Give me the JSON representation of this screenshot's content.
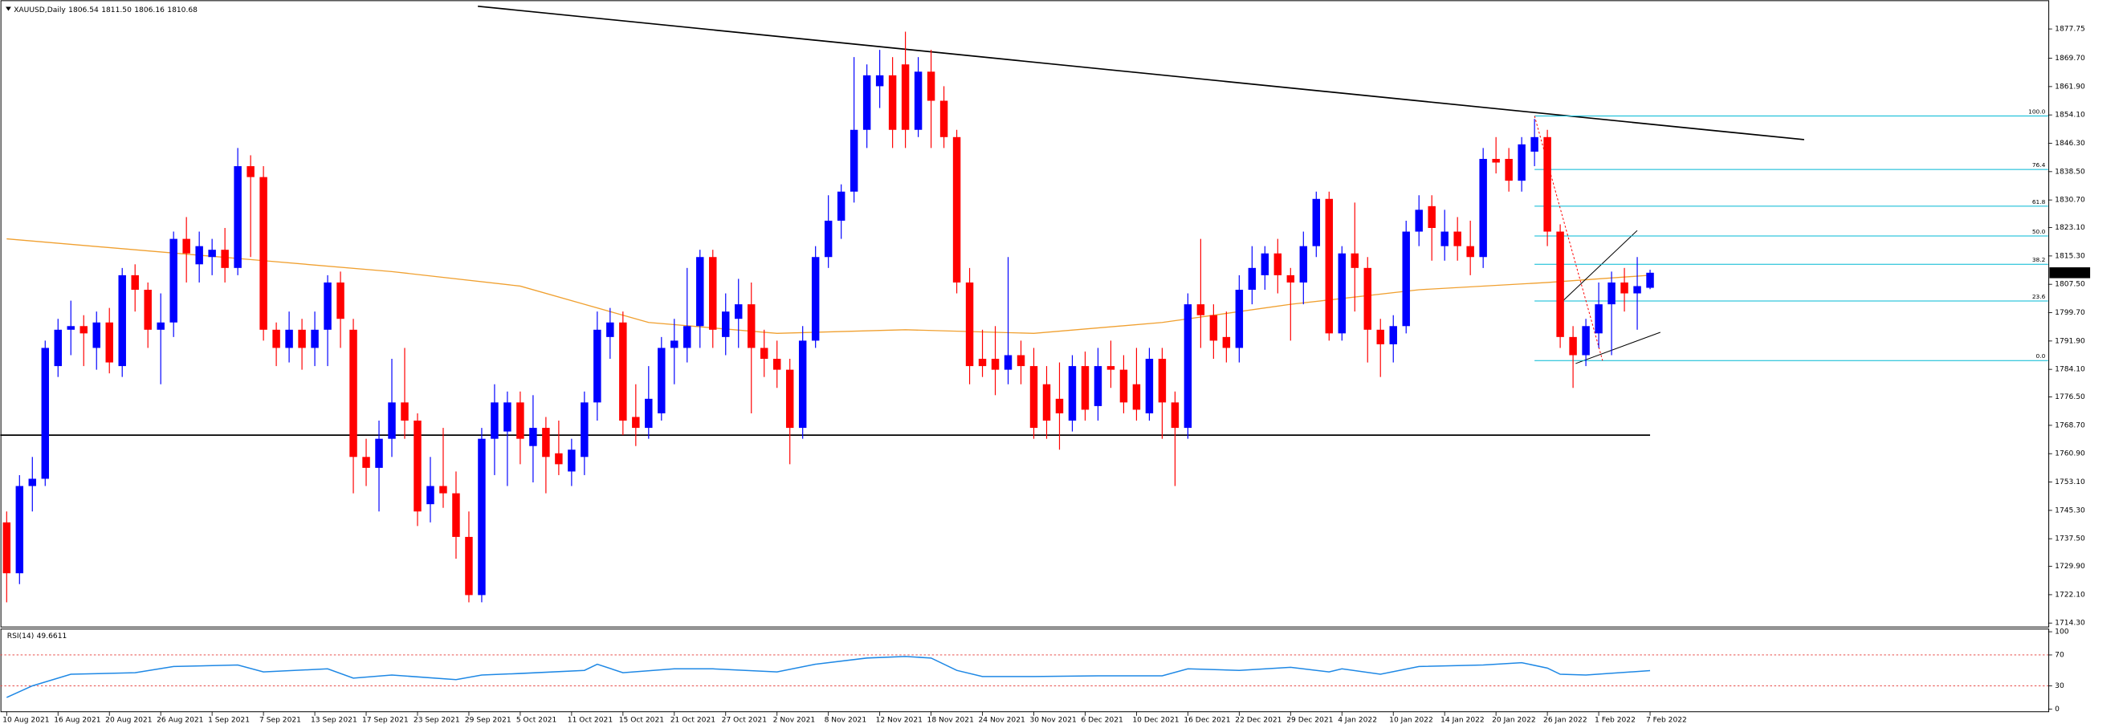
{
  "chart_data": {
    "type": "candlestick",
    "title": "XAUUSD,Daily",
    "ohlc_labels": [
      "1806.54",
      "1811.50",
      "1806.16",
      "1810.68"
    ],
    "categories": [
      "10 Aug 2021",
      null,
      null,
      null,
      "16 Aug 2021",
      null,
      null,
      null,
      "20 Aug 2021",
      null,
      null,
      null,
      "26 Aug 2021",
      null,
      null,
      null,
      "1 Sep 2021",
      null,
      null,
      null,
      "7 Sep 2021",
      null,
      null,
      null,
      "13 Sep 2021",
      null,
      null,
      null,
      "17 Sep 2021",
      null,
      null,
      null,
      "23 Sep 2021",
      null,
      null,
      null,
      "29 Sep 2021",
      null,
      null,
      null,
      "5 Oct 2021",
      null,
      null,
      null,
      "11 Oct 2021",
      null,
      null,
      null,
      "15 Oct 2021",
      null,
      null,
      null,
      "21 Oct 2021",
      null,
      null,
      null,
      "27 Oct 2021",
      null,
      null,
      null,
      "2 Nov 2021",
      null,
      null,
      null,
      "8 Nov 2021",
      null,
      null,
      null,
      "12 Nov 2021",
      null,
      null,
      null,
      "18 Nov 2021",
      null,
      null,
      null,
      "24 Nov 2021",
      null,
      null,
      null,
      "30 Nov 2021",
      null,
      null,
      null,
      "6 Dec 2021",
      null,
      null,
      null,
      "10 Dec 2021",
      null,
      null,
      null,
      "16 Dec 2021",
      null,
      null,
      null,
      "22 Dec 2021",
      null,
      null,
      null,
      "29 Dec 2021",
      null,
      null,
      null,
      "4 Jan 2022",
      null,
      null,
      null,
      "10 Jan 2022",
      null,
      null,
      null,
      "14 Jan 2022",
      null,
      null,
      null,
      "20 Jan 2022",
      null,
      null,
      null,
      "26 Jan 2022",
      null,
      null,
      null,
      "1 Feb 2022",
      null,
      null,
      null,
      "7 Feb 2022"
    ],
    "candles": {
      "open": [
        1742,
        1728,
        1752,
        1754,
        1785,
        1795,
        1796,
        1790,
        1797,
        1785,
        1810,
        1806,
        1795,
        1797,
        1820,
        1813,
        1815,
        1817,
        1812,
        1840,
        1837,
        1795,
        1790,
        1795,
        1790,
        1795,
        1808,
        1795,
        1760,
        1757,
        1765,
        1775,
        1770,
        1747,
        1752,
        1750,
        1738,
        1722,
        1765,
        1767,
        1775,
        1763,
        1768,
        1761,
        1756,
        1760,
        1775,
        1793,
        1797,
        1771,
        1768,
        1772,
        1790,
        1790,
        1796,
        1815,
        1793,
        1798,
        1802,
        1790,
        1787,
        1784,
        1768,
        1792,
        1815,
        1825,
        1833,
        1850,
        1862,
        1865,
        1868,
        1850,
        1866,
        1858,
        1848,
        1808,
        1787,
        1787,
        1784,
        1788,
        1785,
        1780,
        1776,
        1770,
        1785,
        1774,
        1785,
        1784,
        1780,
        1772,
        1787,
        1775,
        1768,
        1802,
        1799,
        1793,
        1790,
        1806,
        1810,
        1816,
        1810,
        1808,
        1818,
        1831,
        1794,
        1816,
        1812,
        1795,
        1791,
        1796,
        1822,
        1829,
        1818,
        1822,
        1818,
        1815,
        1842,
        1842,
        1836,
        1844,
        1848,
        1822,
        1793,
        1788,
        1794,
        1802,
        1808,
        1805,
        1806.54
      ],
      "high": [
        1745,
        1755,
        1760,
        1792,
        1798,
        1803,
        1799,
        1800,
        1801,
        1812,
        1813,
        1808,
        1805,
        1822,
        1826,
        1822,
        1820,
        1823,
        1845,
        1843,
        1840,
        1797,
        1800,
        1798,
        1800,
        1810,
        1811,
        1798,
        1765,
        1770,
        1787,
        1790,
        1772,
        1760,
        1768,
        1756,
        1745,
        1768,
        1780,
        1778,
        1778,
        1777,
        1771,
        1770,
        1765,
        1778,
        1800,
        1801,
        1800,
        1780,
        1785,
        1793,
        1798,
        1812,
        1817,
        1817,
        1805,
        1809,
        1808,
        1795,
        1792,
        1787,
        1796,
        1818,
        1832,
        1835,
        1870,
        1868,
        1872,
        1870,
        1877,
        1870,
        1872,
        1862,
        1850,
        1812,
        1795,
        1796,
        1815,
        1792,
        1790,
        1785,
        1786,
        1788,
        1789,
        1790,
        1792,
        1788,
        1790,
        1790,
        1790,
        1778,
        1805,
        1820,
        1802,
        1800,
        1810,
        1818,
        1818,
        1820,
        1812,
        1822,
        1833,
        1833,
        1818,
        1830,
        1815,
        1798,
        1799,
        1825,
        1832,
        1832,
        1828,
        1826,
        1825,
        1845,
        1848,
        1845,
        1848,
        1853,
        1850,
        1824,
        1796,
        1798,
        1808,
        1811,
        1812,
        1815,
        1811.5
      ],
      "low": [
        1720,
        1725,
        1745,
        1752,
        1782,
        1788,
        1785,
        1784,
        1783,
        1782,
        1800,
        1790,
        1780,
        1793,
        1808,
        1808,
        1810,
        1808,
        1810,
        1815,
        1792,
        1785,
        1786,
        1784,
        1785,
        1785,
        1790,
        1750,
        1752,
        1745,
        1760,
        1765,
        1741,
        1742,
        1746,
        1732,
        1720,
        1720,
        1755,
        1752,
        1758,
        1753,
        1750,
        1755,
        1752,
        1755,
        1770,
        1787,
        1766,
        1763,
        1765,
        1770,
        1780,
        1786,
        1790,
        1790,
        1788,
        1790,
        1772,
        1782,
        1779,
        1758,
        1765,
        1790,
        1812,
        1820,
        1830,
        1845,
        1856,
        1845,
        1845,
        1848,
        1845,
        1845,
        1805,
        1780,
        1782,
        1777,
        1780,
        1780,
        1765,
        1765,
        1762,
        1767,
        1770,
        1770,
        1779,
        1772,
        1770,
        1770,
        1765,
        1752,
        1765,
        1790,
        1787,
        1786,
        1786,
        1802,
        1806,
        1805,
        1792,
        1802,
        1815,
        1792,
        1792,
        1800,
        1786,
        1782,
        1786,
        1794,
        1818,
        1814,
        1814,
        1814,
        1810,
        1812,
        1838,
        1833,
        1833,
        1840,
        1818,
        1790,
        1779,
        1785,
        1790,
        1788,
        1800,
        1795,
        1806.16
      ],
      "close": [
        1728,
        1752,
        1754,
        1790,
        1795,
        1796,
        1794,
        1797,
        1786,
        1810,
        1806,
        1795,
        1797,
        1820,
        1816,
        1818,
        1817,
        1812,
        1840,
        1837,
        1795,
        1790,
        1795,
        1790,
        1795,
        1808,
        1798,
        1760,
        1757,
        1765,
        1775,
        1770,
        1745,
        1752,
        1750,
        1738,
        1722,
        1765,
        1775,
        1775,
        1765,
        1768,
        1760,
        1758,
        1762,
        1775,
        1795,
        1797,
        1770,
        1768,
        1776,
        1790,
        1792,
        1796,
        1815,
        1795,
        1800,
        1802,
        1790,
        1787,
        1784,
        1768,
        1792,
        1815,
        1825,
        1833,
        1850,
        1865,
        1865,
        1850,
        1850,
        1866,
        1858,
        1848,
        1808,
        1785,
        1785,
        1784,
        1788,
        1785,
        1768,
        1770,
        1772,
        1785,
        1773,
        1785,
        1784,
        1775,
        1773,
        1787,
        1775,
        1768,
        1802,
        1799,
        1792,
        1790,
        1806,
        1812,
        1816,
        1810,
        1808,
        1818,
        1831,
        1794,
        1816,
        1812,
        1795,
        1791,
        1796,
        1822,
        1828,
        1823,
        1822,
        1818,
        1815,
        1842,
        1841,
        1836,
        1846,
        1848,
        1822,
        1793,
        1788,
        1796,
        1802,
        1808,
        1805,
        1807,
        1810.68
      ],
      "up_color": "#0000ff",
      "down_color": "#ff0000"
    },
    "ma": {
      "x": [
        0,
        10,
        20,
        30,
        40,
        45,
        50,
        60,
        70,
        80,
        90,
        100,
        110,
        120,
        128
      ],
      "values": [
        1820,
        1817,
        1814,
        1811,
        1807,
        1802,
        1797,
        1794,
        1795,
        1794,
        1797,
        1802,
        1806,
        1808,
        1810
      ],
      "color": "#f0a030"
    },
    "trendline": {
      "x": [
        36.7,
        140
      ],
      "values": [
        1884,
        1847.3
      ],
      "color": "#000000"
    },
    "hline": {
      "x": [
        -0.5,
        128
      ],
      "value": 1766,
      "color": "#000000"
    },
    "channel": [
      {
        "x": [
          122.2,
          128.8
        ],
        "values": [
          1785.7,
          1794.3
        ]
      },
      {
        "x": [
          121.2,
          127
        ],
        "values": [
          1802.9,
          1822.3
        ]
      }
    ],
    "fib": {
      "labels": [
        "100.0",
        "76.4",
        "61.8",
        "50.0",
        "38.2",
        "23.6",
        "0.0"
      ],
      "prices": [
        1853.8,
        1839.1,
        1829.0,
        1820.8,
        1813.0,
        1802.9,
        1786.5
      ],
      "anchor_x": [
        119,
        124.3
      ],
      "color": "#00b8d4"
    },
    "xlim": [
      -0.5,
      159
    ],
    "ylim": [
      1713.4,
      1884.6
    ],
    "yticks": [
      1877.75,
      {
        "value": 1869.7,
        "label": "1869.70"
      },
      {
        "value": 1861.9,
        "label": "1861.90"
      },
      {
        "value": 1854.1,
        "label": "1854.10"
      },
      {
        "value": 1846.3,
        "label": "1846.30"
      },
      {
        "value": 1838.5,
        "label": "1838.50"
      },
      {
        "value": 1830.7,
        "label": "1830.70"
      },
      {
        "value": 1823.1,
        "label": "1823.10"
      },
      {
        "value": 1815.3,
        "label": "1815.30"
      },
      {
        "value": 1807.5,
        "label": "1807.50"
      },
      {
        "value": 1799.7,
        "label": "1799.70"
      },
      {
        "value": 1791.9,
        "label": "1791.90"
      },
      {
        "value": 1784.1,
        "label": "1784.10"
      },
      {
        "value": 1776.5,
        "label": "1776.50"
      },
      {
        "value": 1768.7,
        "label": "1768.70"
      },
      {
        "value": 1760.9,
        "label": "1760.90"
      },
      {
        "value": 1753.1,
        "label": "1753.10"
      },
      {
        "value": 1745.3,
        "label": "1745.30"
      },
      {
        "value": 1737.5,
        "label": "1737.50"
      },
      {
        "value": 1729.9,
        "label": "1729.90"
      },
      {
        "value": 1722.1,
        "label": "1722.10"
      },
      {
        "value": 1714.3,
        "label": "1714.30"
      }
    ],
    "grid": false,
    "rsi": {
      "name": "RSI(14)",
      "x": [
        0,
        2,
        5,
        10,
        13,
        18,
        20,
        25,
        27,
        30,
        35,
        37,
        40,
        45,
        46,
        48,
        52,
        55,
        60,
        63,
        67,
        70,
        72,
        74,
        76,
        80,
        85,
        90,
        92,
        96,
        100,
        103,
        104,
        107,
        110,
        115,
        118,
        120,
        121,
        123,
        128
      ],
      "values": [
        15,
        30,
        45,
        47,
        55,
        57,
        48,
        52,
        40,
        44,
        38,
        44,
        46,
        50,
        58,
        47,
        52,
        52,
        48,
        58,
        66,
        68,
        66,
        50,
        42,
        42,
        43,
        43,
        52,
        50,
        54,
        48,
        52,
        45,
        55,
        57,
        60,
        53,
        45,
        44,
        49.6611
      ],
      "ylim": [
        0,
        100
      ],
      "yticks": [
        100,
        70,
        30,
        0
      ],
      "levels": [
        70,
        30
      ],
      "color": "#1e88e5",
      "level_color": "#e53935"
    }
  }
}
